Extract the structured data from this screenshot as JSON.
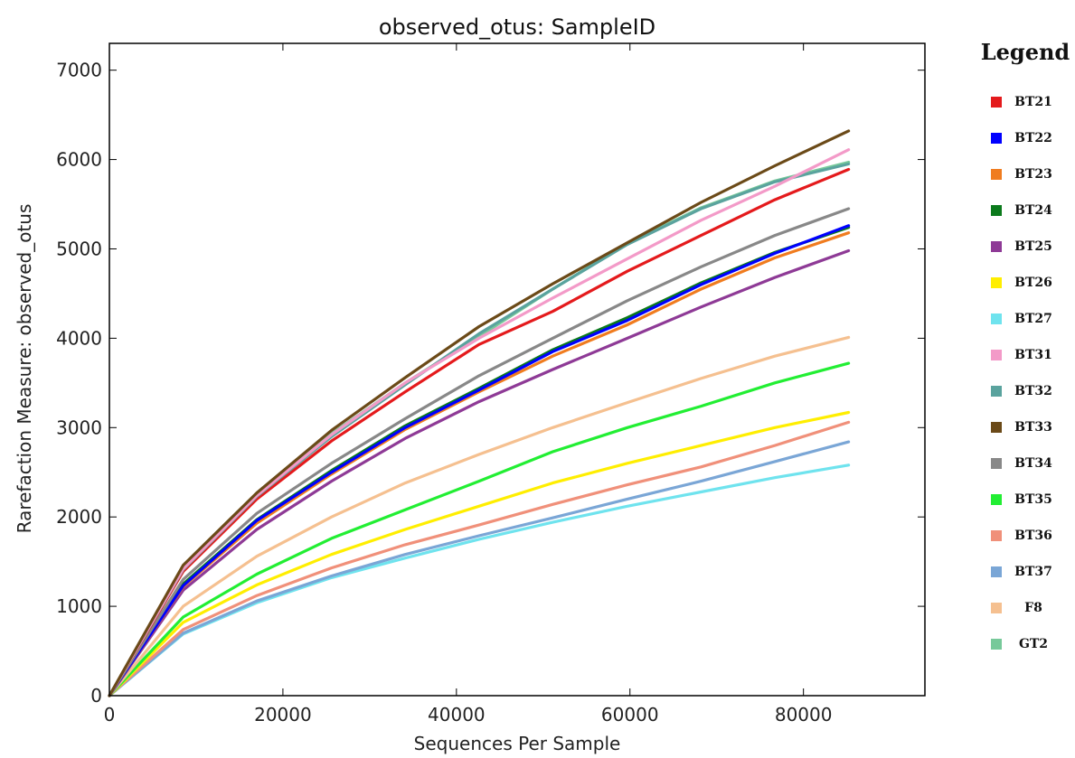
{
  "chart_data": {
    "type": "line",
    "title": "observed_otus: SampleID",
    "xlabel": "Sequences Per Sample",
    "ylabel": "Rarefaction Measure: observed_otus",
    "xlim": [
      0,
      94000
    ],
    "ylim": [
      0,
      7300
    ],
    "xticks": [
      0,
      20000,
      40000,
      60000,
      80000
    ],
    "yticks": [
      0,
      1000,
      2000,
      3000,
      4000,
      5000,
      6000,
      7000
    ],
    "grid": false,
    "legend_title": "Legend",
    "legend_position": "right",
    "x": [
      0,
      8500,
      17000,
      25600,
      34100,
      42600,
      51100,
      59700,
      68200,
      76700,
      85200
    ],
    "series": [
      {
        "name": "BT21",
        "color": "#e41a1c",
        "values": [
          0,
          1390,
          2200,
          2850,
          3400,
          3930,
          4300,
          4750,
          5150,
          5550,
          5890
        ]
      },
      {
        "name": "BT22",
        "color": "#0000ff",
        "values": [
          0,
          1230,
          1960,
          2500,
          3000,
          3420,
          3850,
          4200,
          4600,
          4950,
          5260
        ]
      },
      {
        "name": "BT23",
        "color": "#f07c1f",
        "values": [
          0,
          1220,
          1930,
          2480,
          2980,
          3400,
          3800,
          4150,
          4550,
          4900,
          5180
        ]
      },
      {
        "name": "BT24",
        "color": "#0b7a1c",
        "values": [
          0,
          1250,
          1970,
          2520,
          3020,
          3440,
          3870,
          4230,
          4620,
          4960,
          5240
        ]
      },
      {
        "name": "BT25",
        "color": "#8e3a96",
        "values": [
          0,
          1180,
          1860,
          2400,
          2880,
          3290,
          3650,
          4000,
          4350,
          4680,
          4980
        ]
      },
      {
        "name": "BT26",
        "color": "#ffee00",
        "values": [
          0,
          820,
          1240,
          1580,
          1860,
          2120,
          2380,
          2600,
          2800,
          3000,
          3170
        ]
      },
      {
        "name": "BT27",
        "color": "#6fe3ee",
        "values": [
          0,
          690,
          1040,
          1320,
          1540,
          1750,
          1940,
          2120,
          2280,
          2440,
          2580
        ]
      },
      {
        "name": "BT31",
        "color": "#f39ac8",
        "values": [
          0,
          1420,
          2240,
          2920,
          3500,
          4000,
          4450,
          4890,
          5320,
          5700,
          6110
        ]
      },
      {
        "name": "BT32",
        "color": "#5aa39e",
        "values": [
          0,
          1410,
          2230,
          2900,
          3480,
          4050,
          4550,
          5050,
          5450,
          5750,
          5950
        ]
      },
      {
        "name": "BT33",
        "color": "#6b4a18",
        "values": [
          0,
          1460,
          2270,
          2970,
          3560,
          4130,
          4610,
          5070,
          5520,
          5930,
          6320
        ]
      },
      {
        "name": "BT34",
        "color": "#888888",
        "values": [
          0,
          1300,
          2040,
          2600,
          3100,
          3580,
          4000,
          4420,
          4800,
          5150,
          5450
        ]
      },
      {
        "name": "BT35",
        "color": "#22ee33",
        "values": [
          0,
          880,
          1360,
          1760,
          2080,
          2400,
          2730,
          3000,
          3240,
          3500,
          3720
        ]
      },
      {
        "name": "BT36",
        "color": "#f0907a",
        "values": [
          0,
          740,
          1120,
          1430,
          1690,
          1910,
          2140,
          2360,
          2560,
          2800,
          3060
        ]
      },
      {
        "name": "BT37",
        "color": "#7aa6d6",
        "values": [
          0,
          700,
          1060,
          1340,
          1580,
          1790,
          1990,
          2200,
          2400,
          2620,
          2840
        ]
      },
      {
        "name": "F8",
        "color": "#f5c090",
        "values": [
          0,
          1000,
          1560,
          2000,
          2380,
          2700,
          3000,
          3280,
          3550,
          3800,
          4010
        ]
      },
      {
        "name": "GT2",
        "color": "#77c99a",
        "values": [
          0,
          1420,
          2250,
          2930,
          3500,
          4020,
          4550,
          5060,
          5460,
          5760,
          5970
        ]
      }
    ]
  }
}
